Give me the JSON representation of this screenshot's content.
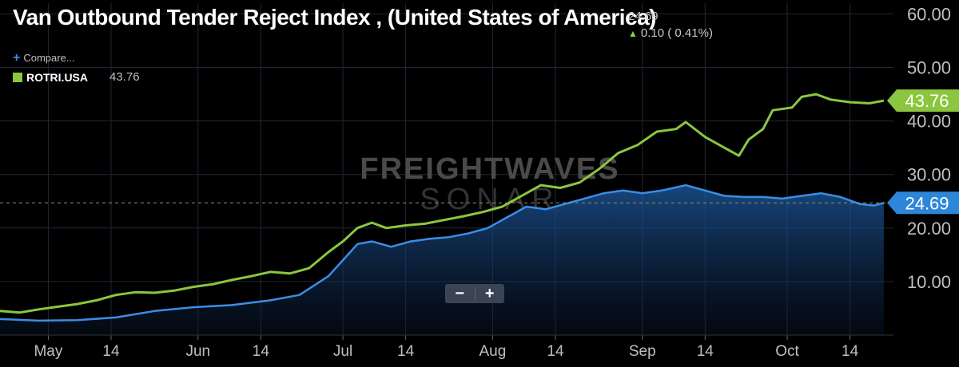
{
  "header": {
    "title": "Van Outbound Tender Reject Index , (United States of America)",
    "value": "24.69",
    "change": "0.10 ( 0.41%)"
  },
  "legend": {
    "compare_label": "Compare...",
    "series_name": "ROTRI.USA",
    "series_value": "43.76"
  },
  "watermark": {
    "line1": "FREIGHTWAVES",
    "line2": "SONAR"
  },
  "zoom": {
    "minus": "−",
    "plus": "+"
  },
  "colors": {
    "green": "#8cc63f",
    "blue": "#3a8ee6",
    "grid": "#1e2836",
    "axis_text": "#bfbfbf"
  },
  "chart_data": {
    "type": "line",
    "ylim": [
      0,
      62
    ],
    "y_ticks": [
      "10.00",
      "20.00",
      "30.00",
      "40.00",
      "50.00",
      "60.00"
    ],
    "y_tick_values": [
      10,
      20,
      30,
      40,
      50,
      60
    ],
    "x_ticks": [
      "May",
      "14",
      "Jun",
      "14",
      "Jul",
      "14",
      "Aug",
      "14",
      "Sep",
      "14",
      "Oct",
      "14"
    ],
    "x_tick_dates": [
      "2020-05-01",
      "2020-05-14",
      "2020-06-01",
      "2020-06-14",
      "2020-07-01",
      "2020-07-14",
      "2020-08-01",
      "2020-08-14",
      "2020-09-01",
      "2020-09-14",
      "2020-10-01",
      "2020-10-14"
    ],
    "x_range": [
      "2020-04-21",
      "2020-10-23"
    ],
    "series": [
      {
        "name": "ROTRI.USA",
        "color": "#8cc63f",
        "last_label": "43.76",
        "points": [
          [
            "2020-04-21",
            4.5
          ],
          [
            "2020-04-25",
            4.2
          ],
          [
            "2020-04-29",
            4.8
          ],
          [
            "2020-05-03",
            5.3
          ],
          [
            "2020-05-07",
            5.8
          ],
          [
            "2020-05-11",
            6.5
          ],
          [
            "2020-05-15",
            7.5
          ],
          [
            "2020-05-19",
            8.0
          ],
          [
            "2020-05-23",
            7.9
          ],
          [
            "2020-05-27",
            8.3
          ],
          [
            "2020-05-31",
            9.0
          ],
          [
            "2020-06-04",
            9.5
          ],
          [
            "2020-06-08",
            10.3
          ],
          [
            "2020-06-12",
            11.0
          ],
          [
            "2020-06-16",
            11.8
          ],
          [
            "2020-06-20",
            11.5
          ],
          [
            "2020-06-24",
            12.5
          ],
          [
            "2020-06-28",
            15.5
          ],
          [
            "2020-07-01",
            17.5
          ],
          [
            "2020-07-04",
            20.0
          ],
          [
            "2020-07-07",
            21.0
          ],
          [
            "2020-07-10",
            20.0
          ],
          [
            "2020-07-14",
            20.5
          ],
          [
            "2020-07-18",
            20.8
          ],
          [
            "2020-07-22",
            21.5
          ],
          [
            "2020-07-26",
            22.2
          ],
          [
            "2020-07-30",
            23.0
          ],
          [
            "2020-08-03",
            24.0
          ],
          [
            "2020-08-07",
            26.0
          ],
          [
            "2020-08-11",
            28.0
          ],
          [
            "2020-08-15",
            27.5
          ],
          [
            "2020-08-19",
            28.5
          ],
          [
            "2020-08-23",
            31.0
          ],
          [
            "2020-08-27",
            34.0
          ],
          [
            "2020-08-31",
            35.5
          ],
          [
            "2020-09-04",
            38.0
          ],
          [
            "2020-09-08",
            38.5
          ],
          [
            "2020-09-10",
            39.8
          ],
          [
            "2020-09-14",
            37.0
          ],
          [
            "2020-09-18",
            35.0
          ],
          [
            "2020-09-21",
            33.5
          ],
          [
            "2020-09-23",
            36.5
          ],
          [
            "2020-09-26",
            38.5
          ],
          [
            "2020-09-28",
            42.0
          ],
          [
            "2020-10-02",
            42.5
          ],
          [
            "2020-10-04",
            44.5
          ],
          [
            "2020-10-07",
            45.0
          ],
          [
            "2020-10-10",
            44.0
          ],
          [
            "2020-10-14",
            43.5
          ],
          [
            "2020-10-18",
            43.3
          ],
          [
            "2020-10-21",
            43.8
          ]
        ]
      },
      {
        "name": "",
        "color": "#3a8ee6",
        "last_label": "24.69",
        "points": [
          [
            "2020-04-21",
            3.0
          ],
          [
            "2020-04-29",
            2.7
          ],
          [
            "2020-05-07",
            2.8
          ],
          [
            "2020-05-15",
            3.3
          ],
          [
            "2020-05-23",
            4.5
          ],
          [
            "2020-05-31",
            5.2
          ],
          [
            "2020-06-08",
            5.6
          ],
          [
            "2020-06-16",
            6.5
          ],
          [
            "2020-06-22",
            7.5
          ],
          [
            "2020-06-28",
            11.0
          ],
          [
            "2020-07-01",
            14.0
          ],
          [
            "2020-07-04",
            17.0
          ],
          [
            "2020-07-07",
            17.5
          ],
          [
            "2020-07-11",
            16.5
          ],
          [
            "2020-07-15",
            17.5
          ],
          [
            "2020-07-19",
            18.0
          ],
          [
            "2020-07-23",
            18.3
          ],
          [
            "2020-07-27",
            19.0
          ],
          [
            "2020-07-31",
            20.0
          ],
          [
            "2020-08-04",
            22.0
          ],
          [
            "2020-08-08",
            24.0
          ],
          [
            "2020-08-12",
            23.5
          ],
          [
            "2020-08-16",
            24.5
          ],
          [
            "2020-08-20",
            25.5
          ],
          [
            "2020-08-24",
            26.5
          ],
          [
            "2020-08-28",
            27.0
          ],
          [
            "2020-09-01",
            26.5
          ],
          [
            "2020-09-05",
            27.0
          ],
          [
            "2020-09-10",
            28.0
          ],
          [
            "2020-09-14",
            27.0
          ],
          [
            "2020-09-18",
            26.0
          ],
          [
            "2020-09-22",
            25.8
          ],
          [
            "2020-09-26",
            25.8
          ],
          [
            "2020-09-30",
            25.5
          ],
          [
            "2020-10-04",
            26.0
          ],
          [
            "2020-10-08",
            26.5
          ],
          [
            "2020-10-12",
            25.8
          ],
          [
            "2020-10-16",
            24.5
          ],
          [
            "2020-10-19",
            24.2
          ],
          [
            "2020-10-21",
            24.7
          ]
        ]
      }
    ]
  }
}
